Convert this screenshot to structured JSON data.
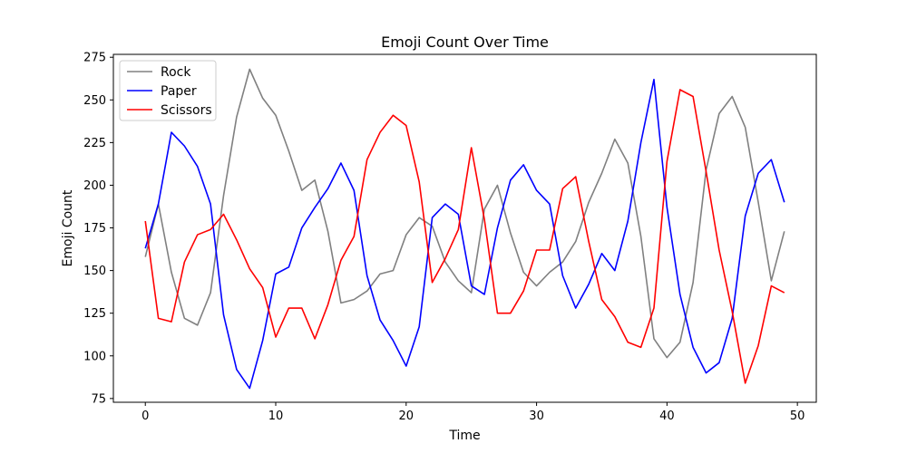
{
  "chart_data": {
    "type": "line",
    "title": "Emoji Count Over Time",
    "xlabel": "Time",
    "ylabel": "Emoji Count",
    "xlim": [
      -2.45,
      51.45
    ],
    "ylim": [
      72.8,
      276.7
    ],
    "xticks": [
      0,
      10,
      20,
      30,
      40,
      50
    ],
    "yticks": [
      75,
      100,
      125,
      150,
      175,
      200,
      225,
      250,
      275
    ],
    "grid": false,
    "legend_position": "top-left",
    "x": [
      0,
      1,
      2,
      3,
      4,
      5,
      6,
      7,
      8,
      9,
      10,
      11,
      12,
      13,
      14,
      15,
      16,
      17,
      18,
      19,
      20,
      21,
      22,
      23,
      24,
      25,
      26,
      27,
      28,
      29,
      30,
      31,
      32,
      33,
      34,
      35,
      36,
      37,
      38,
      39,
      40,
      41,
      42,
      43,
      44,
      45,
      46,
      47,
      48,
      49
    ],
    "series": [
      {
        "name": "Rock",
        "color": "#808080",
        "values": [
          158,
          189,
          149,
          122,
          118,
          137,
          194,
          240,
          268,
          251,
          241,
          220,
          197,
          203,
          173,
          131,
          133,
          138,
          148,
          150,
          171,
          181,
          176,
          155,
          144,
          137,
          186,
          200,
          172,
          149,
          141,
          149,
          155,
          167,
          190,
          207,
          227,
          213,
          170,
          110,
          99,
          108,
          143,
          209,
          242,
          252,
          234,
          190,
          144,
          173
        ]
      },
      {
        "name": "Paper",
        "color": "#0000ff",
        "values": [
          163,
          189,
          231,
          223,
          211,
          189,
          124,
          92,
          81,
          109,
          148,
          152,
          175,
          187,
          198,
          213,
          197,
          147,
          121,
          109,
          94,
          117,
          181,
          189,
          183,
          141,
          136,
          175,
          203,
          212,
          197,
          189,
          147,
          128,
          142,
          160,
          150,
          179,
          225,
          262,
          187,
          136,
          105,
          90,
          96,
          122,
          182,
          207,
          215,
          190
        ]
      },
      {
        "name": "Scissors",
        "color": "#ff0000",
        "values": [
          179,
          122,
          120,
          155,
          171,
          174,
          183,
          168,
          151,
          140,
          111,
          128,
          128,
          110,
          130,
          156,
          170,
          215,
          231,
          241,
          235,
          202,
          143,
          157,
          174,
          222,
          180,
          125,
          125,
          138,
          162,
          162,
          198,
          205,
          167,
          133,
          123,
          108,
          105,
          128,
          214,
          256,
          252,
          208,
          162,
          126,
          84,
          106,
          141,
          137
        ]
      }
    ]
  }
}
